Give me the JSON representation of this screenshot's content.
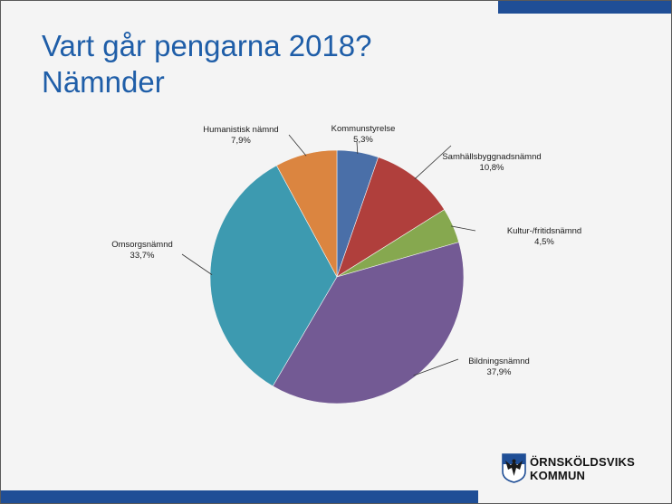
{
  "title": {
    "line1": "Vart går pengarna 2018?",
    "line2": "Nämnder"
  },
  "logo": {
    "line1": "ÖRNSKÖLDSVIKS",
    "line2": "KOMMUN"
  },
  "chart_data": {
    "type": "pie",
    "title": "",
    "slices": [
      {
        "label": "Kommunstyrelse",
        "value": 5.3,
        "value_label": "5,3%",
        "color": "#4a6fa8"
      },
      {
        "label": "Samhällsbyggnadsnämnd",
        "value": 10.8,
        "value_label": "10,8%",
        "color": "#b03f3c"
      },
      {
        "label": "Kultur-/fritidsnämnd",
        "value": 4.5,
        "value_label": "4,5%",
        "color": "#86a84f"
      },
      {
        "label": "Bildningsnämnd",
        "value": 37.9,
        "value_label": "37,9%",
        "color": "#735a94"
      },
      {
        "label": "Omsorgsnämnd",
        "value": 33.7,
        "value_label": "33,7%",
        "color": "#3d9ab0"
      },
      {
        "label": "Humanistisk nämnd",
        "value": 7.9,
        "value_label": "7,9%",
        "color": "#db8540"
      }
    ]
  }
}
